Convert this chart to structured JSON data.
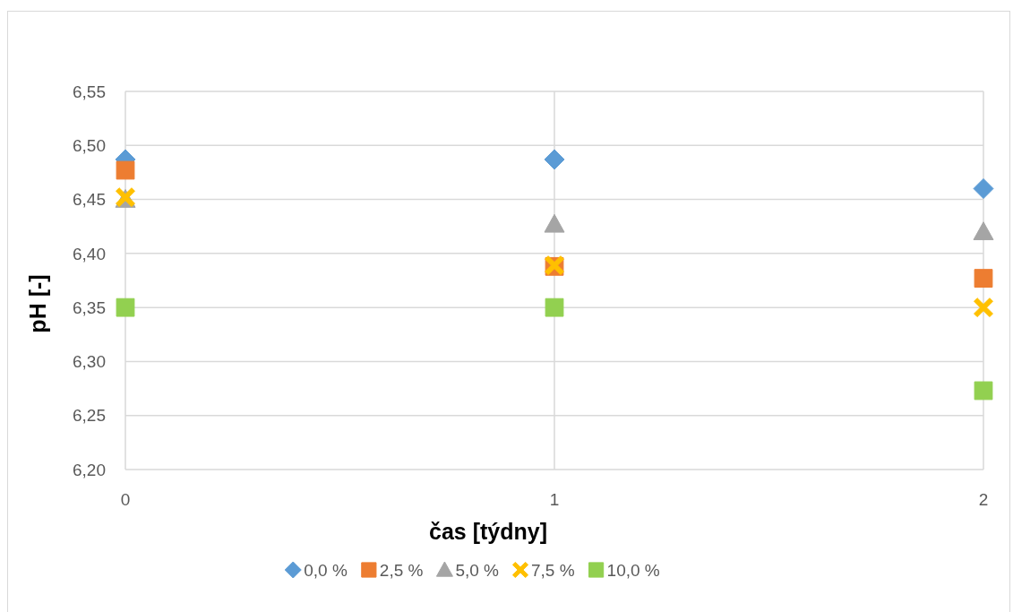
{
  "chart_data": {
    "type": "scatter",
    "xlabel": "čas [týdny]",
    "ylabel": "pH [-]",
    "x": [
      0,
      1,
      2
    ],
    "xlim": [
      0,
      2
    ],
    "xticks": [
      0,
      1,
      2
    ],
    "ylim": [
      6.2,
      6.55
    ],
    "yticks": [
      {
        "value": 6.2,
        "label": "6,20"
      },
      {
        "value": 6.25,
        "label": "6,25"
      },
      {
        "value": 6.3,
        "label": "6,30"
      },
      {
        "value": 6.35,
        "label": "6,35"
      },
      {
        "value": 6.4,
        "label": "6,40"
      },
      {
        "value": 6.45,
        "label": "6,45"
      },
      {
        "value": 6.5,
        "label": "6,50"
      },
      {
        "value": 6.55,
        "label": "6,55"
      }
    ],
    "grid": true,
    "legend": "bottom",
    "series": [
      {
        "name": "0,0 %",
        "color": "#5b9bd5",
        "marker": "diamond",
        "values": [
          6.487,
          6.487,
          6.46
        ]
      },
      {
        "name": "2,5 %",
        "color": "#ed7d31",
        "marker": "square",
        "values": [
          6.477,
          6.388,
          6.377
        ]
      },
      {
        "name": "5,0 %",
        "color": "#a5a5a5",
        "marker": "triangle",
        "values": [
          6.45,
          6.427,
          6.42
        ]
      },
      {
        "name": "7,5 %",
        "color": "#ffc000",
        "marker": "cross",
        "values": [
          6.452,
          6.389,
          6.35
        ]
      },
      {
        "name": "10,0 %",
        "color": "#92d050",
        "marker": "square",
        "values": [
          6.35,
          6.35,
          6.273
        ]
      }
    ]
  }
}
